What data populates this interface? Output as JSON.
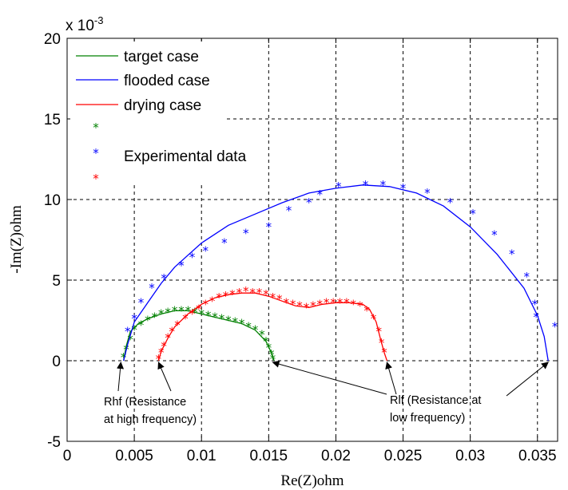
{
  "chart_data": {
    "type": "line",
    "title": "",
    "xlabel": "Re(Z)ohm",
    "ylabel": "-Im(Z)ohm",
    "xlim": [
      0,
      0.0365
    ],
    "ylim": [
      -5,
      20
    ],
    "y_multiplier": "x 10-3",
    "x_ticks": [
      "0",
      "0.005",
      "0.01",
      "0.015",
      "0.02",
      "0.025",
      "0.03",
      "0.035"
    ],
    "y_ticks": [
      "-5",
      "0",
      "5",
      "10",
      "15",
      "20"
    ],
    "grid": true,
    "legend_position": "top-left",
    "legend": {
      "lines": [
        "target case",
        "flooded case",
        "drying case"
      ],
      "markers_label": "Experimental data"
    },
    "series": [
      {
        "name": "target case",
        "color": "#008000",
        "model": [
          [
            0.0042,
            0.0
          ],
          [
            0.0044,
            0.9
          ],
          [
            0.0047,
            1.8
          ],
          [
            0.0053,
            2.3
          ],
          [
            0.006,
            2.6
          ],
          [
            0.007,
            2.9
          ],
          [
            0.008,
            3.1
          ],
          [
            0.009,
            3.1
          ],
          [
            0.01,
            2.9
          ],
          [
            0.011,
            2.7
          ],
          [
            0.012,
            2.5
          ],
          [
            0.013,
            2.3
          ],
          [
            0.014,
            1.9
          ],
          [
            0.0148,
            1.2
          ],
          [
            0.0152,
            0.5
          ],
          [
            0.0154,
            0.0
          ]
        ],
        "experimental": [
          [
            0.0042,
            0.2
          ],
          [
            0.0044,
            0.7
          ],
          [
            0.0047,
            1.3
          ],
          [
            0.005,
            1.9
          ],
          [
            0.0055,
            2.2
          ],
          [
            0.006,
            2.5
          ],
          [
            0.0065,
            2.7
          ],
          [
            0.007,
            2.9
          ],
          [
            0.0075,
            3.0
          ],
          [
            0.008,
            3.1
          ],
          [
            0.0085,
            3.1
          ],
          [
            0.009,
            3.1
          ],
          [
            0.0095,
            3.0
          ],
          [
            0.01,
            2.9
          ],
          [
            0.0105,
            2.8
          ],
          [
            0.011,
            2.7
          ],
          [
            0.0115,
            2.6
          ],
          [
            0.012,
            2.5
          ],
          [
            0.0125,
            2.4
          ],
          [
            0.013,
            2.3
          ],
          [
            0.0135,
            2.1
          ],
          [
            0.014,
            1.9
          ],
          [
            0.0145,
            1.6
          ],
          [
            0.0148,
            1.2
          ],
          [
            0.015,
            0.8
          ],
          [
            0.0152,
            0.4
          ],
          [
            0.0153,
            0.1
          ]
        ]
      },
      {
        "name": "flooded case",
        "color": "#0000ff",
        "model": [
          [
            0.0042,
            0.0
          ],
          [
            0.0045,
            1.0
          ],
          [
            0.005,
            2.4
          ],
          [
            0.006,
            3.6
          ],
          [
            0.007,
            4.8
          ],
          [
            0.008,
            5.8
          ],
          [
            0.01,
            7.3
          ],
          [
            0.012,
            8.4
          ],
          [
            0.014,
            9.1
          ],
          [
            0.016,
            9.8
          ],
          [
            0.018,
            10.4
          ],
          [
            0.02,
            10.7
          ],
          [
            0.022,
            10.9
          ],
          [
            0.024,
            10.8
          ],
          [
            0.026,
            10.4
          ],
          [
            0.028,
            9.6
          ],
          [
            0.03,
            8.3
          ],
          [
            0.032,
            6.6
          ],
          [
            0.034,
            4.5
          ],
          [
            0.035,
            2.8
          ],
          [
            0.0355,
            1.5
          ],
          [
            0.0358,
            0.0
          ]
        ],
        "experimental": [
          [
            0.0045,
            1.8
          ],
          [
            0.005,
            2.6
          ],
          [
            0.0055,
            3.6
          ],
          [
            0.0063,
            4.5
          ],
          [
            0.0072,
            5.1
          ],
          [
            0.0085,
            5.9
          ],
          [
            0.0093,
            6.4
          ],
          [
            0.0103,
            6.8
          ],
          [
            0.0117,
            7.3
          ],
          [
            0.0133,
            7.9
          ],
          [
            0.015,
            8.3
          ],
          [
            0.0165,
            9.3
          ],
          [
            0.018,
            9.8
          ],
          [
            0.0188,
            10.3
          ],
          [
            0.0202,
            10.8
          ],
          [
            0.0222,
            10.9
          ],
          [
            0.0235,
            10.9
          ],
          [
            0.025,
            10.7
          ],
          [
            0.0268,
            10.4
          ],
          [
            0.0285,
            9.8
          ],
          [
            0.0302,
            9.1
          ],
          [
            0.0318,
            7.8
          ],
          [
            0.0331,
            6.6
          ],
          [
            0.0342,
            5.2
          ],
          [
            0.0348,
            3.5
          ],
          [
            0.0349,
            2.7
          ],
          [
            0.0363,
            2.1
          ]
        ]
      },
      {
        "name": "drying case",
        "color": "#ff0000",
        "model": [
          [
            0.0068,
            0.0
          ],
          [
            0.007,
            0.6
          ],
          [
            0.0075,
            1.4
          ],
          [
            0.008,
            2.1
          ],
          [
            0.009,
            2.9
          ],
          [
            0.01,
            3.5
          ],
          [
            0.011,
            3.9
          ],
          [
            0.012,
            4.1
          ],
          [
            0.013,
            4.2
          ],
          [
            0.014,
            4.2
          ],
          [
            0.015,
            4.0
          ],
          [
            0.016,
            3.7
          ],
          [
            0.017,
            3.4
          ],
          [
            0.018,
            3.3
          ],
          [
            0.019,
            3.5
          ],
          [
            0.02,
            3.6
          ],
          [
            0.021,
            3.6
          ],
          [
            0.022,
            3.5
          ],
          [
            0.0225,
            3.2
          ],
          [
            0.023,
            2.4
          ],
          [
            0.0233,
            1.4
          ],
          [
            0.0236,
            0.5
          ],
          [
            0.0238,
            0.0
          ]
        ],
        "experimental": [
          [
            0.0068,
            0.1
          ],
          [
            0.007,
            0.5
          ],
          [
            0.0072,
            0.9
          ],
          [
            0.0075,
            1.4
          ],
          [
            0.0078,
            1.8
          ],
          [
            0.0082,
            2.2
          ],
          [
            0.0088,
            2.6
          ],
          [
            0.0093,
            2.9
          ],
          [
            0.0098,
            3.2
          ],
          [
            0.0103,
            3.5
          ],
          [
            0.0108,
            3.7
          ],
          [
            0.0113,
            3.9
          ],
          [
            0.0118,
            4.0
          ],
          [
            0.0123,
            4.1
          ],
          [
            0.0128,
            4.2
          ],
          [
            0.0133,
            4.3
          ],
          [
            0.0138,
            4.2
          ],
          [
            0.0143,
            4.2
          ],
          [
            0.0148,
            4.1
          ],
          [
            0.0153,
            3.9
          ],
          [
            0.0158,
            3.8
          ],
          [
            0.0163,
            3.6
          ],
          [
            0.0168,
            3.5
          ],
          [
            0.0173,
            3.4
          ],
          [
            0.0178,
            3.3
          ],
          [
            0.0183,
            3.4
          ],
          [
            0.0188,
            3.5
          ],
          [
            0.0193,
            3.6
          ],
          [
            0.0198,
            3.6
          ],
          [
            0.0203,
            3.6
          ],
          [
            0.0208,
            3.6
          ],
          [
            0.0213,
            3.5
          ],
          [
            0.0218,
            3.4
          ],
          [
            0.0223,
            3.1
          ],
          [
            0.0228,
            2.6
          ],
          [
            0.0232,
            1.8
          ],
          [
            0.0234,
            1.1
          ],
          [
            0.0236,
            0.5
          ]
        ]
      }
    ],
    "annotations": [
      {
        "lines": [
          "Rhf (Resistance",
          "at high frequency)"
        ],
        "targets": [
          [
            0.004,
            0.0
          ],
          [
            0.0068,
            0.0
          ]
        ]
      },
      {
        "lines": [
          "Rlf (Resistance at",
          "low frequency)"
        ],
        "targets": [
          [
            0.0153,
            0.0
          ],
          [
            0.0238,
            0.0
          ],
          [
            0.0358,
            0.0
          ]
        ]
      }
    ]
  }
}
